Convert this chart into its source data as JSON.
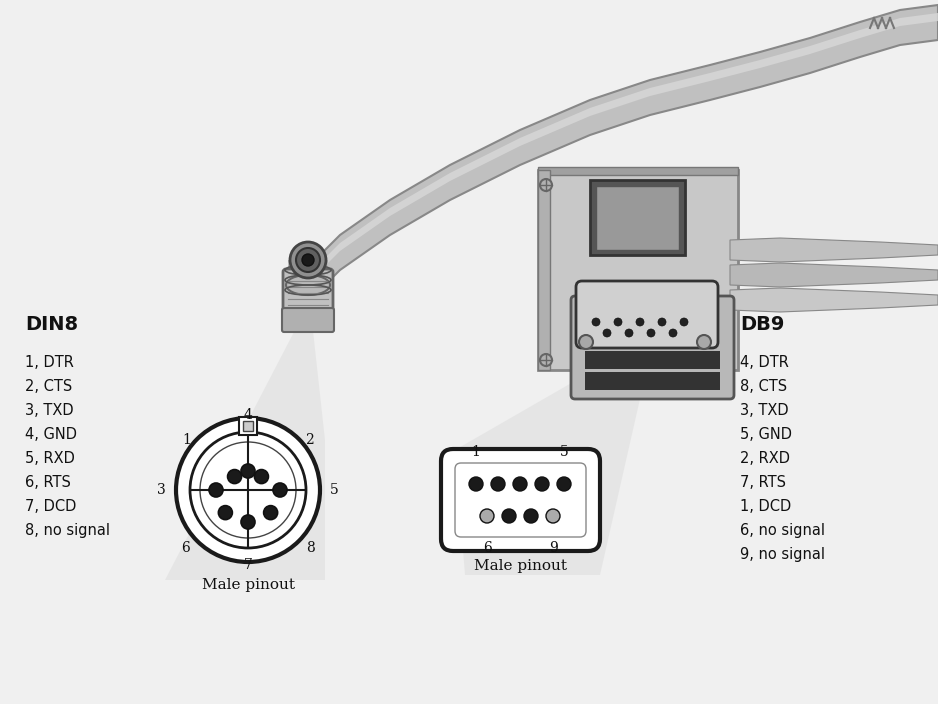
{
  "bg_color": "#f0f0f0",
  "din8_label": "DIN8",
  "db9_label": "DB9",
  "din8_pins": [
    "1, DTR",
    "2, CTS",
    "3, TXD",
    "4, GND",
    "5, RXD",
    "6, RTS",
    "7, DCD",
    "8, no signal"
  ],
  "db9_pins": [
    "4, DTR",
    "8, CTS",
    "3, TXD",
    "5, GND",
    "2, RXD",
    "7, RTS",
    "1, DCD",
    "6, no signal",
    "9, no signal"
  ],
  "male_pinout_label": "Male pinout",
  "pin_dark": "#1a1a1a",
  "pin_gray": "#aaaaaa",
  "text_color": "#111111",
  "cable_body": "#c0c0c0",
  "cable_edge": "#888888",
  "cable_light": "#d8d8d8",
  "connector_body": "#b8b8b8",
  "connector_edge": "#666666"
}
